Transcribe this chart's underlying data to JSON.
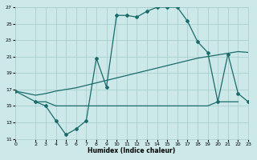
{
  "xlabel": "Humidex (Indice chaleur)",
  "bg_color": "#cce8e8",
  "line_color": "#1a6b6b",
  "grid_color": "#aacece",
  "xlim": [
    0,
    23
  ],
  "ylim": [
    11,
    27
  ],
  "xticks": [
    0,
    2,
    3,
    4,
    5,
    6,
    7,
    8,
    9,
    10,
    11,
    12,
    13,
    14,
    15,
    16,
    17,
    18,
    19,
    20,
    21,
    22,
    23
  ],
  "yticks": [
    11,
    13,
    15,
    17,
    19,
    21,
    23,
    25,
    27
  ],
  "line_flat": {
    "x": [
      2,
      3,
      4,
      5,
      6,
      7,
      8,
      9,
      10,
      11,
      12,
      13,
      14,
      15,
      16,
      17,
      18,
      19,
      20,
      21,
      22
    ],
    "y": [
      15.5,
      15.5,
      15.0,
      15.0,
      15.0,
      15.0,
      15.0,
      15.0,
      15.0,
      15.0,
      15.0,
      15.0,
      15.0,
      15.0,
      15.0,
      15.0,
      15.0,
      15.0,
      15.5,
      15.5,
      15.5
    ]
  },
  "line_diag": {
    "x": [
      0,
      2,
      3,
      4,
      5,
      6,
      7,
      8,
      9,
      10,
      11,
      12,
      13,
      14,
      15,
      16,
      17,
      18,
      19,
      20,
      21,
      22,
      23
    ],
    "y": [
      16.8,
      16.3,
      16.5,
      16.8,
      17.0,
      17.2,
      17.5,
      17.8,
      18.1,
      18.4,
      18.7,
      19.0,
      19.3,
      19.6,
      19.9,
      20.2,
      20.5,
      20.8,
      21.0,
      21.2,
      21.4,
      21.6,
      21.5
    ]
  },
  "line_curve": {
    "x": [
      0,
      2,
      3,
      4,
      5,
      6,
      7,
      8,
      9,
      10,
      11,
      12,
      13,
      14,
      15,
      16,
      17,
      18,
      19,
      20,
      21,
      22,
      23
    ],
    "y": [
      16.8,
      15.5,
      15.0,
      13.2,
      11.5,
      12.2,
      13.2,
      20.8,
      17.3,
      26.0,
      26.0,
      25.8,
      26.5,
      27.0,
      27.0,
      27.0,
      25.3,
      22.8,
      21.5,
      15.5,
      21.3,
      16.5,
      15.5
    ]
  }
}
